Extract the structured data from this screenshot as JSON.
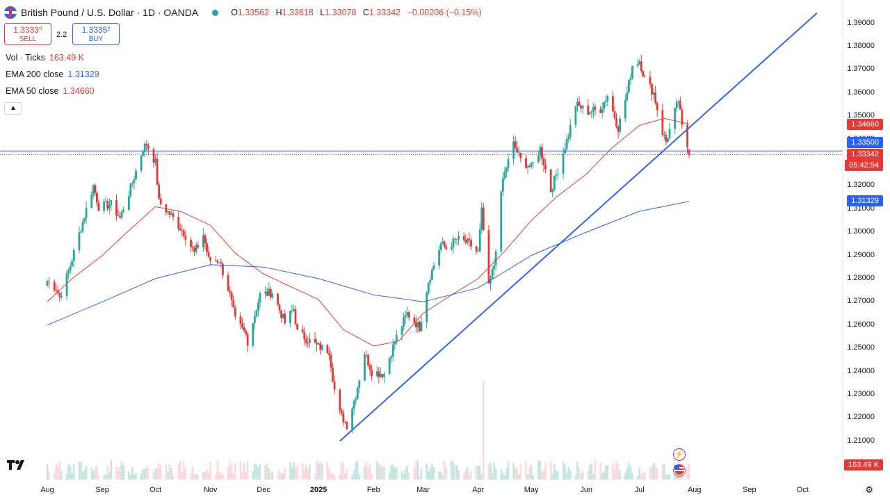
{
  "header": {
    "title": "British Pound / U.S. Dollar · 1D · OANDA",
    "o_label": "O",
    "o": "1.33562",
    "h_label": "H",
    "h": "1.33618",
    "l_label": "L",
    "l": "1.33078",
    "c_label": "C",
    "c": "1.33342",
    "change": "−0.00206 (−0.15%)"
  },
  "trade": {
    "sell_price": "1.3333⁰",
    "sell_label": "SELL",
    "spread": "2.2",
    "buy_price": "1.3335²",
    "buy_label": "BUY"
  },
  "indicators": {
    "vol_label": "Vol · Ticks",
    "vol_value": "163.49 K",
    "ema200_label": "EMA 200 close",
    "ema200_value": "1.31329",
    "ema50_label": "EMA 50 close",
    "ema50_value": "1.34660"
  },
  "badges": {
    "ema50": "1.34660",
    "hline": "1.33500",
    "last": "1.33342",
    "countdown": "05:42:54",
    "ema200": "1.31329",
    "volume": "163.49 K"
  },
  "colors": {
    "up": "#26a69a",
    "down": "#e53935",
    "ema50": "#e53935",
    "ema200": "#2962ff",
    "trendline": "#2962ff",
    "accent": "#2962ff"
  },
  "icons": [
    "tradingview-logo-icon",
    "settings-icon",
    "lightning-icon",
    "us-flag-icon",
    "chevron-up-icon"
  ],
  "chart_data": {
    "type": "candlestick",
    "symbol": "GBPUSD",
    "timeframe": "1D",
    "y_ticks": [
      "1.39000",
      "1.38000",
      "1.37000",
      "1.36000",
      "1.35000",
      "1.34000",
      "1.33000",
      "1.32000",
      "1.31000",
      "1.30000",
      "1.29000",
      "1.28000",
      "1.27000",
      "1.26000",
      "1.25000",
      "1.24000",
      "1.23000",
      "1.22000",
      "1.21000"
    ],
    "x_ticks": [
      "Aug",
      "Sep",
      "Oct",
      "Nov",
      "Dec",
      "2025",
      "Feb",
      "Mar",
      "Apr",
      "May",
      "Jun",
      "Jul",
      "Aug",
      "Sep",
      "Oct"
    ],
    "ylim": [
      1.2,
      1.395
    ],
    "close_path": [
      [
        "2024-08-01",
        1.279
      ],
      [
        "2024-08-06",
        1.276
      ],
      [
        "2024-08-08",
        1.272
      ],
      [
        "2024-08-13",
        1.283
      ],
      [
        "2024-08-20",
        1.302
      ],
      [
        "2024-08-27",
        1.32
      ],
      [
        "2024-08-30",
        1.311
      ],
      [
        "2024-09-06",
        1.312
      ],
      [
        "2024-09-11",
        1.306
      ],
      [
        "2024-09-17",
        1.319
      ],
      [
        "2024-09-24",
        1.336
      ],
      [
        "2024-09-26",
        1.338
      ],
      [
        "2024-10-01",
        1.33
      ],
      [
        "2024-10-03",
        1.313
      ],
      [
        "2024-10-10",
        1.307
      ],
      [
        "2024-10-17",
        1.3
      ],
      [
        "2024-10-23",
        1.291
      ],
      [
        "2024-10-28",
        1.299
      ],
      [
        "2024-10-31",
        1.288
      ],
      [
        "2024-11-06",
        1.288
      ],
      [
        "2024-11-12",
        1.273
      ],
      [
        "2024-11-15",
        1.262
      ],
      [
        "2024-11-21",
        1.256
      ],
      [
        "2024-11-22",
        1.253
      ],
      [
        "2024-11-29",
        1.273
      ],
      [
        "2024-12-06",
        1.274
      ],
      [
        "2024-12-13",
        1.261
      ],
      [
        "2024-12-18",
        1.267
      ],
      [
        "2024-12-20",
        1.257
      ],
      [
        "2024-12-31",
        1.251
      ],
      [
        "2025-01-07",
        1.249
      ],
      [
        "2025-01-10",
        1.232
      ],
      [
        "2025-01-13",
        1.222
      ],
      [
        "2025-01-17",
        1.217
      ],
      [
        "2025-01-22",
        1.23
      ],
      [
        "2025-01-27",
        1.248
      ],
      [
        "2025-01-31",
        1.24
      ],
      [
        "2025-02-07",
        1.239
      ],
      [
        "2025-02-13",
        1.253
      ],
      [
        "2025-02-20",
        1.265
      ],
      [
        "2025-02-27",
        1.259
      ],
      [
        "2025-03-04",
        1.279
      ],
      [
        "2025-03-11",
        1.295
      ],
      [
        "2025-03-14",
        1.293
      ],
      [
        "2025-03-20",
        1.297
      ],
      [
        "2025-03-27",
        1.295
      ],
      [
        "2025-04-01",
        1.291
      ],
      [
        "2025-04-03",
        1.309
      ],
      [
        "2025-04-07",
        1.276
      ],
      [
        "2025-04-10",
        1.286
      ],
      [
        "2025-04-15",
        1.323
      ],
      [
        "2025-04-21",
        1.338
      ],
      [
        "2025-04-25",
        1.331
      ],
      [
        "2025-05-01",
        1.328
      ],
      [
        "2025-05-06",
        1.336
      ],
      [
        "2025-05-12",
        1.318
      ],
      [
        "2025-05-16",
        1.327
      ],
      [
        "2025-05-22",
        1.342
      ],
      [
        "2025-05-26",
        1.355
      ],
      [
        "2025-06-02",
        1.352
      ],
      [
        "2025-06-09",
        1.353
      ],
      [
        "2025-06-13",
        1.359
      ],
      [
        "2025-06-19",
        1.345
      ],
      [
        "2025-06-24",
        1.36
      ],
      [
        "2025-06-27",
        1.372
      ],
      [
        "2025-07-01",
        1.374
      ],
      [
        "2025-07-04",
        1.366
      ],
      [
        "2025-07-09",
        1.36
      ],
      [
        "2025-07-14",
        1.343
      ],
      [
        "2025-07-16",
        1.339
      ],
      [
        "2025-07-18",
        1.344
      ],
      [
        "2025-07-23",
        1.357
      ],
      [
        "2025-07-25",
        1.345
      ],
      [
        "2025-07-28",
        1.337
      ],
      [
        "2025-07-29",
        1.3334
      ]
    ],
    "ema50_path": [
      [
        "2024-08-01",
        1.27
      ],
      [
        "2024-08-15",
        1.28
      ],
      [
        "2024-09-01",
        1.29
      ],
      [
        "2024-09-15",
        1.3
      ],
      [
        "2024-10-01",
        1.311
      ],
      [
        "2024-10-15",
        1.309
      ],
      [
        "2024-11-01",
        1.303
      ],
      [
        "2024-11-15",
        1.291
      ],
      [
        "2024-12-01",
        1.282
      ],
      [
        "2024-12-15",
        1.277
      ],
      [
        "2025-01-01",
        1.271
      ],
      [
        "2025-01-15",
        1.258
      ],
      [
        "2025-02-01",
        1.251
      ],
      [
        "2025-02-15",
        1.253
      ],
      [
        "2025-03-01",
        1.265
      ],
      [
        "2025-03-15",
        1.272
      ],
      [
        "2025-04-01",
        1.28
      ],
      [
        "2025-04-15",
        1.291
      ],
      [
        "2025-05-01",
        1.305
      ],
      [
        "2025-05-15",
        1.315
      ],
      [
        "2025-06-01",
        1.325
      ],
      [
        "2025-06-15",
        1.336
      ],
      [
        "2025-07-01",
        1.346
      ],
      [
        "2025-07-15",
        1.349
      ],
      [
        "2025-07-29",
        1.3466
      ]
    ],
    "ema200_path": [
      [
        "2024-08-01",
        1.26
      ],
      [
        "2024-09-01",
        1.27
      ],
      [
        "2024-10-01",
        1.28
      ],
      [
        "2024-11-01",
        1.286
      ],
      [
        "2024-12-01",
        1.285
      ],
      [
        "2025-01-01",
        1.28
      ],
      [
        "2025-02-01",
        1.273
      ],
      [
        "2025-03-01",
        1.27
      ],
      [
        "2025-04-01",
        1.276
      ],
      [
        "2025-05-01",
        1.29
      ],
      [
        "2025-06-01",
        1.3
      ],
      [
        "2025-07-01",
        1.309
      ],
      [
        "2025-07-29",
        1.3133
      ]
    ],
    "hline": 1.335,
    "trendline": [
      [
        "2025-01-13",
        1.21
      ],
      [
        "2025-07-29",
        1.345
      ]
    ],
    "volume_last": "163.49 K"
  }
}
